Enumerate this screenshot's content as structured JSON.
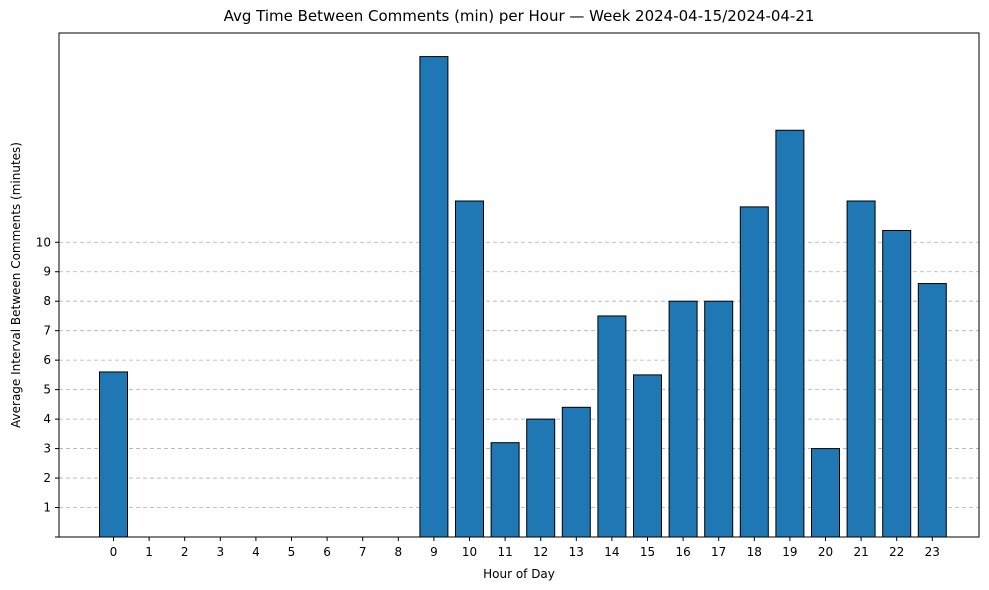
{
  "chart_data": {
    "type": "bar",
    "title": "Avg Time Between Comments (min) per Hour — Week 2024-04-15/2024-04-21",
    "xlabel": "Hour of Day",
    "ylabel": "Average Interval Between Comments (minutes)",
    "categories": [
      "0",
      "1",
      "2",
      "3",
      "4",
      "5",
      "6",
      "7",
      "8",
      "9",
      "10",
      "11",
      "12",
      "13",
      "14",
      "15",
      "16",
      "17",
      "18",
      "19",
      "20",
      "21",
      "22",
      "23"
    ],
    "values": [
      5.6,
      0,
      0,
      0,
      0,
      0,
      0,
      0,
      0,
      16.3,
      11.4,
      3.2,
      4.0,
      4.4,
      7.5,
      5.5,
      8.0,
      8.0,
      11.2,
      13.8,
      3.0,
      11.4,
      10.4,
      8.6
    ],
    "yticks": [
      1,
      2,
      3,
      4,
      5,
      6,
      7,
      8,
      9,
      10
    ],
    "ylim": [
      0,
      17.1
    ],
    "grid": "horizontal dashed",
    "bar_color": "#1f77b4",
    "edge_color": "#000000"
  }
}
